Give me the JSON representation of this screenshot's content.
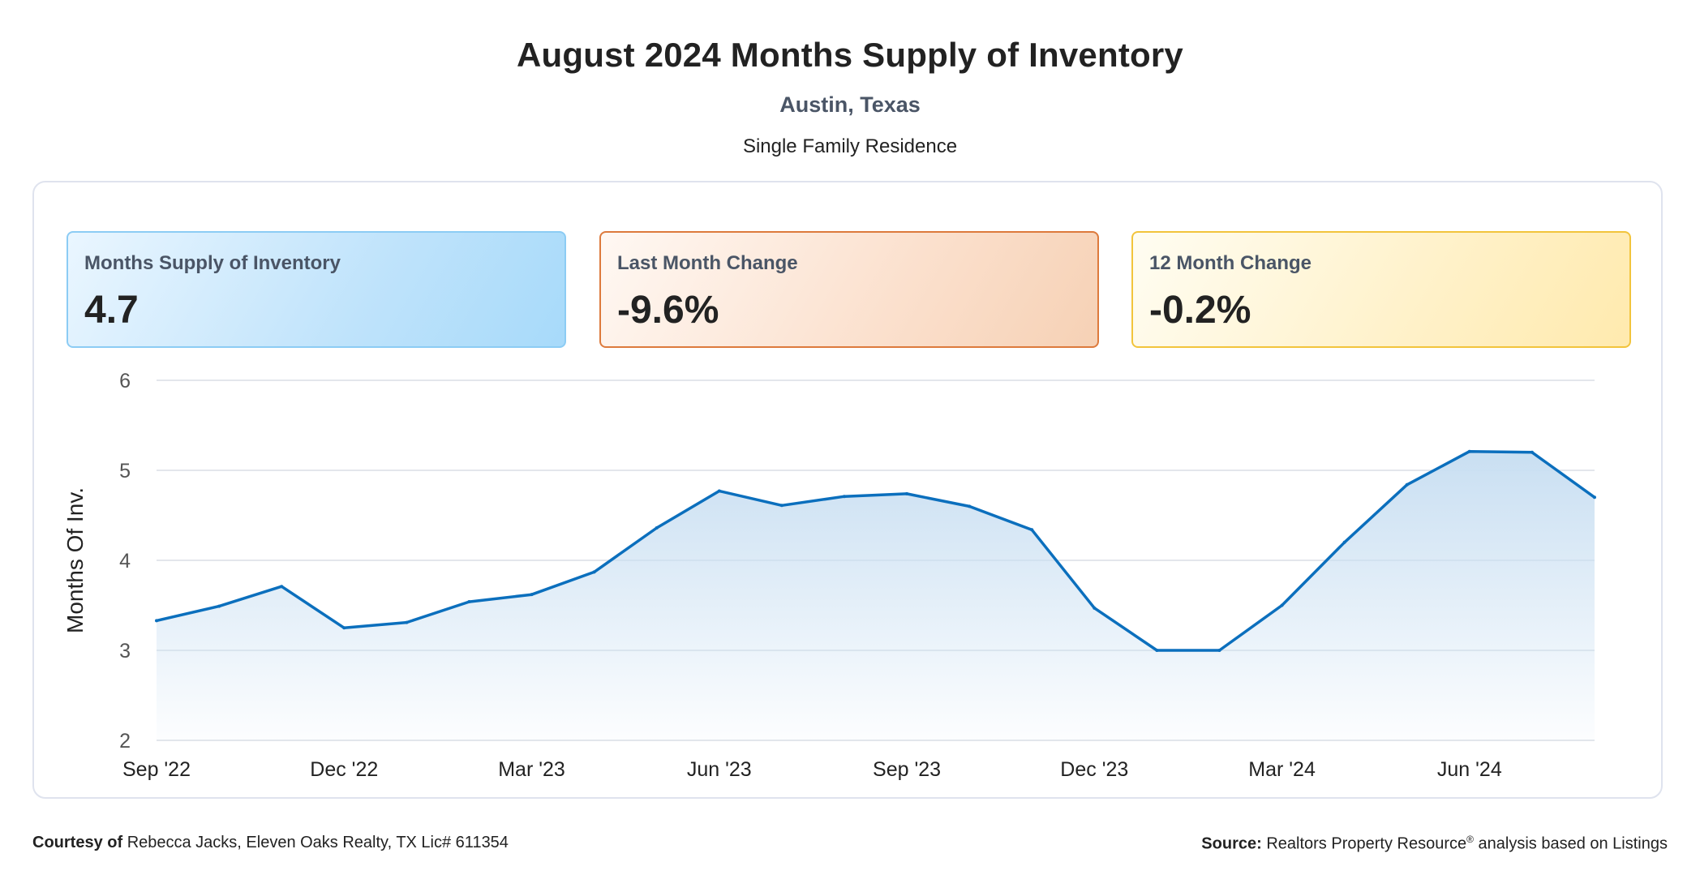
{
  "header": {
    "title": "August 2024 Months Supply of Inventory",
    "location": "Austin, Texas",
    "property_type": "Single Family Residence"
  },
  "cards": [
    {
      "label": "Months Supply of Inventory",
      "value": "4.7",
      "accent": "#8cccf4"
    },
    {
      "label": "Last Month Change",
      "value": "-9.6%",
      "accent": "#dd7a3c"
    },
    {
      "label": "12 Month Change",
      "value": "-0.2%",
      "accent": "#f2c43c"
    }
  ],
  "chart_data": {
    "type": "area",
    "ylabel": "Months Of Inv.",
    "ylim": [
      2,
      6
    ],
    "yticks": [
      2,
      3,
      4,
      5,
      6
    ],
    "x": [
      "Sep '22",
      "Oct '22",
      "Nov '22",
      "Dec '22",
      "Jan '23",
      "Feb '23",
      "Mar '23",
      "Apr '23",
      "May '23",
      "Jun '23",
      "Jul '23",
      "Aug '23",
      "Sep '23",
      "Oct '23",
      "Nov '23",
      "Dec '23",
      "Jan '24",
      "Feb '24",
      "Mar '24",
      "Apr '24",
      "May '24",
      "Jun '24",
      "Jul '24",
      "Aug '24"
    ],
    "xtick_labels": [
      "Sep '22",
      "Dec '22",
      "Mar '23",
      "Jun '23",
      "Sep '23",
      "Dec '23",
      "Mar '24",
      "Jun '24"
    ],
    "values": [
      3.33,
      3.49,
      3.71,
      3.25,
      3.31,
      3.54,
      3.62,
      3.87,
      4.36,
      4.77,
      4.61,
      4.71,
      4.74,
      4.6,
      4.34,
      3.47,
      3.0,
      3.0,
      3.5,
      4.2,
      4.84,
      5.21,
      5.2,
      4.7
    ],
    "grid": true,
    "line_color": "#0b6fbd",
    "fill_color": "#c9dff2"
  },
  "footer": {
    "courtesy_label": "Courtesy of",
    "courtesy_text": "Rebecca Jacks, Eleven Oaks Realty, TX Lic# 611354",
    "source_label": "Source:",
    "source_text": "Realtors Property Resource",
    "source_reg": "®",
    "source_suffix": " analysis based on Listings"
  }
}
